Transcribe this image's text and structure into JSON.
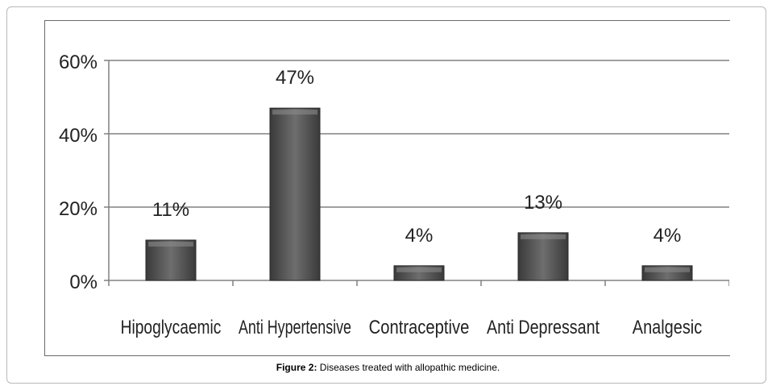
{
  "chart_data": {
    "type": "bar",
    "categories": [
      "Hipoglycaemic",
      "Anti Hypertensive",
      "Contraceptive",
      "Anti Depressant",
      "Analgesic"
    ],
    "values": [
      11,
      47,
      4,
      13,
      4
    ],
    "data_labels": [
      "11%",
      "47%",
      "4%",
      "13%",
      "4%"
    ],
    "ylim": [
      0,
      60
    ],
    "yticks": [
      0,
      20,
      40,
      60
    ],
    "ytick_labels": [
      "0%",
      "20%",
      "40%",
      "60%"
    ],
    "grid": true,
    "bar_color": "#595959"
  },
  "caption": {
    "label": "Figure 2:",
    "text": " Diseases treated with allopathic medicine."
  }
}
